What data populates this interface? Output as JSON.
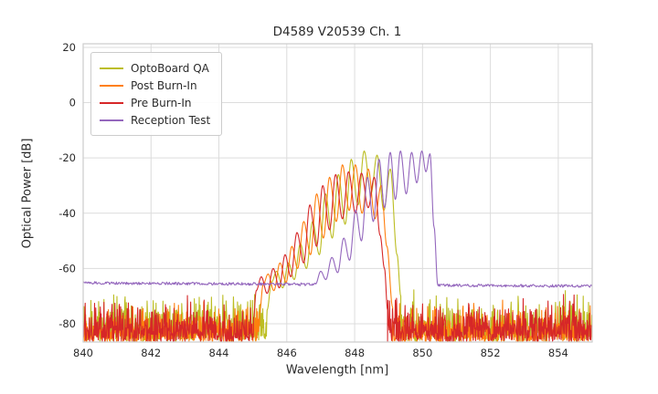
{
  "chart_data": {
    "type": "line",
    "title": "D4589 V20539 Ch. 1",
    "xlabel": "Wavelength [nm]",
    "ylabel": "Optical Power [dB]",
    "xlim": [
      840,
      855
    ],
    "ylim": [
      -86.6,
      21.3
    ],
    "xticks": [
      840,
      842,
      844,
      846,
      848,
      850,
      852,
      854
    ],
    "yticks": [
      20,
      0,
      -20,
      -40,
      -60,
      -80
    ],
    "grid": true,
    "grid_color": "#dcdcdc",
    "spine_color": "#cccccc",
    "legend_position": "upper left",
    "series": [
      {
        "name": "OptoBoard QA",
        "color": "#bcbd22",
        "noise": {
          "ranges": [
            [
              840,
              845.42
            ],
            [
              849.36,
              855
            ]
          ],
          "top": -67,
          "depth": 19
        },
        "mode_profile": [
          [
            845.42,
            -75
          ],
          [
            845.55,
            -65
          ],
          [
            845.7,
            -61
          ],
          [
            845.88,
            -67
          ],
          [
            846.05,
            -58
          ],
          [
            846.22,
            -64
          ],
          [
            846.4,
            -51
          ],
          [
            846.58,
            -60
          ],
          [
            846.76,
            -43
          ],
          [
            846.96,
            -55
          ],
          [
            847.14,
            -33
          ],
          [
            847.34,
            -49
          ],
          [
            847.52,
            -26
          ],
          [
            847.72,
            -44
          ],
          [
            847.9,
            -20.5
          ],
          [
            848.1,
            -37
          ],
          [
            848.28,
            -17.5
          ],
          [
            848.48,
            -33
          ],
          [
            848.66,
            -19
          ],
          [
            848.86,
            -39
          ],
          [
            849.05,
            -24
          ],
          [
            849.25,
            -55
          ],
          [
            849.36,
            -70
          ]
        ]
      },
      {
        "name": "Post Burn-In",
        "color": "#ff7f0e",
        "noise": {
          "ranges": [
            [
              840,
              845.2
            ],
            [
              849.12,
              855
            ]
          ],
          "top": -70,
          "depth": 16.5
        },
        "mode_profile": [
          [
            845.2,
            -76
          ],
          [
            845.3,
            -66
          ],
          [
            845.45,
            -62
          ],
          [
            845.62,
            -68
          ],
          [
            845.8,
            -58
          ],
          [
            845.98,
            -65
          ],
          [
            846.15,
            -52
          ],
          [
            846.32,
            -60
          ],
          [
            846.5,
            -43
          ],
          [
            846.7,
            -55
          ],
          [
            846.88,
            -33
          ],
          [
            847.08,
            -49
          ],
          [
            847.26,
            -27
          ],
          [
            847.46,
            -43
          ],
          [
            847.64,
            -22.5
          ],
          [
            847.84,
            -39
          ],
          [
            848.02,
            -22.5
          ],
          [
            848.22,
            -40
          ],
          [
            848.4,
            -24
          ],
          [
            848.6,
            -42
          ],
          [
            848.78,
            -30
          ],
          [
            848.95,
            -52
          ],
          [
            849.12,
            -74
          ]
        ]
      },
      {
        "name": "Pre Burn-In",
        "color": "#d62728",
        "noise": {
          "ranges": [
            [
              840,
              845.02
            ],
            [
              848.97,
              855
            ]
          ],
          "top": -68.5,
          "depth": 18
        },
        "mode_profile": [
          [
            845.02,
            -78
          ],
          [
            845.1,
            -68
          ],
          [
            845.25,
            -63
          ],
          [
            845.42,
            -69
          ],
          [
            845.6,
            -60
          ],
          [
            845.78,
            -67
          ],
          [
            845.95,
            -55
          ],
          [
            846.12,
            -63
          ],
          [
            846.3,
            -47
          ],
          [
            846.5,
            -58
          ],
          [
            846.68,
            -37
          ],
          [
            846.88,
            -52
          ],
          [
            847.06,
            -30
          ],
          [
            847.26,
            -46
          ],
          [
            847.44,
            -26
          ],
          [
            847.64,
            -42
          ],
          [
            847.82,
            -25
          ],
          [
            848.02,
            -40
          ],
          [
            848.2,
            -25.5
          ],
          [
            848.4,
            -38
          ],
          [
            848.58,
            -27
          ],
          [
            848.75,
            -48
          ],
          [
            848.88,
            -60
          ],
          [
            848.97,
            -75
          ]
        ]
      },
      {
        "name": "Reception Test",
        "color": "#9467bd",
        "baseline": {
          "ranges": [
            [
              840,
              846.85
            ],
            [
              850.45,
              855
            ]
          ],
          "level": -65.2,
          "slope": -0.08,
          "jitter": 1.0
        },
        "mode_profile": [
          [
            846.85,
            -65.6
          ],
          [
            847.0,
            -61
          ],
          [
            847.15,
            -64
          ],
          [
            847.33,
            -56
          ],
          [
            847.5,
            -61.5
          ],
          [
            847.68,
            -49
          ],
          [
            847.85,
            -57
          ],
          [
            848.03,
            -39
          ],
          [
            848.2,
            -50
          ],
          [
            848.38,
            -27
          ],
          [
            848.55,
            -43
          ],
          [
            848.72,
            -20.5
          ],
          [
            848.88,
            -38
          ],
          [
            849.05,
            -18
          ],
          [
            849.2,
            -35
          ],
          [
            849.35,
            -17.5
          ],
          [
            849.52,
            -33
          ],
          [
            849.68,
            -18
          ],
          [
            849.83,
            -29
          ],
          [
            849.98,
            -17.5
          ],
          [
            850.1,
            -25
          ],
          [
            850.22,
            -18.5
          ],
          [
            850.34,
            -45
          ],
          [
            850.45,
            -66
          ]
        ]
      }
    ]
  }
}
